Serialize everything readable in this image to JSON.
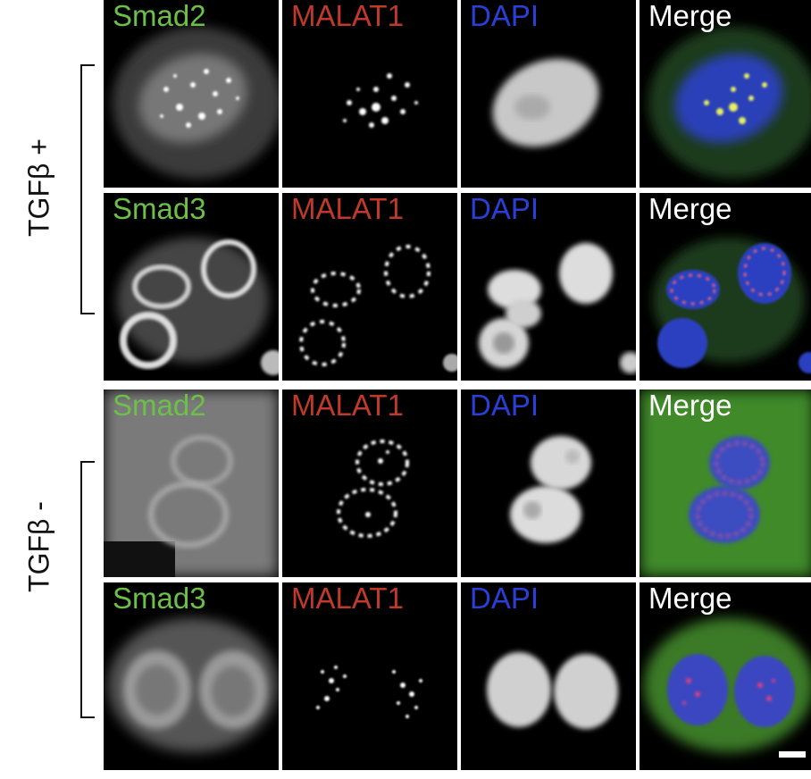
{
  "groups": [
    {
      "label": "TGFβ +"
    },
    {
      "label": "TGFβ -"
    }
  ],
  "channels": [
    {
      "label": "Smad2",
      "color": "#6cc04a"
    },
    {
      "label": "MALAT1",
      "color": "#c0392b"
    },
    {
      "label": "DAPI",
      "color": "#2a3fd6"
    },
    {
      "label": "Merge",
      "color": "#ffffff"
    }
  ],
  "rows": [
    [
      "Smad2",
      "MALAT1",
      "DAPI",
      "Merge"
    ],
    [
      "Smad3",
      "MALAT1",
      "DAPI",
      "Merge"
    ],
    [
      "Smad2",
      "MALAT1",
      "DAPI",
      "Merge"
    ],
    [
      "Smad3",
      "MALAT1",
      "DAPI",
      "Merge"
    ]
  ],
  "label_colors": {
    "smad": "#6cc04a",
    "malat1": "#c0392b",
    "dapi": "#2a3fd6",
    "merge": "#ffffff"
  }
}
